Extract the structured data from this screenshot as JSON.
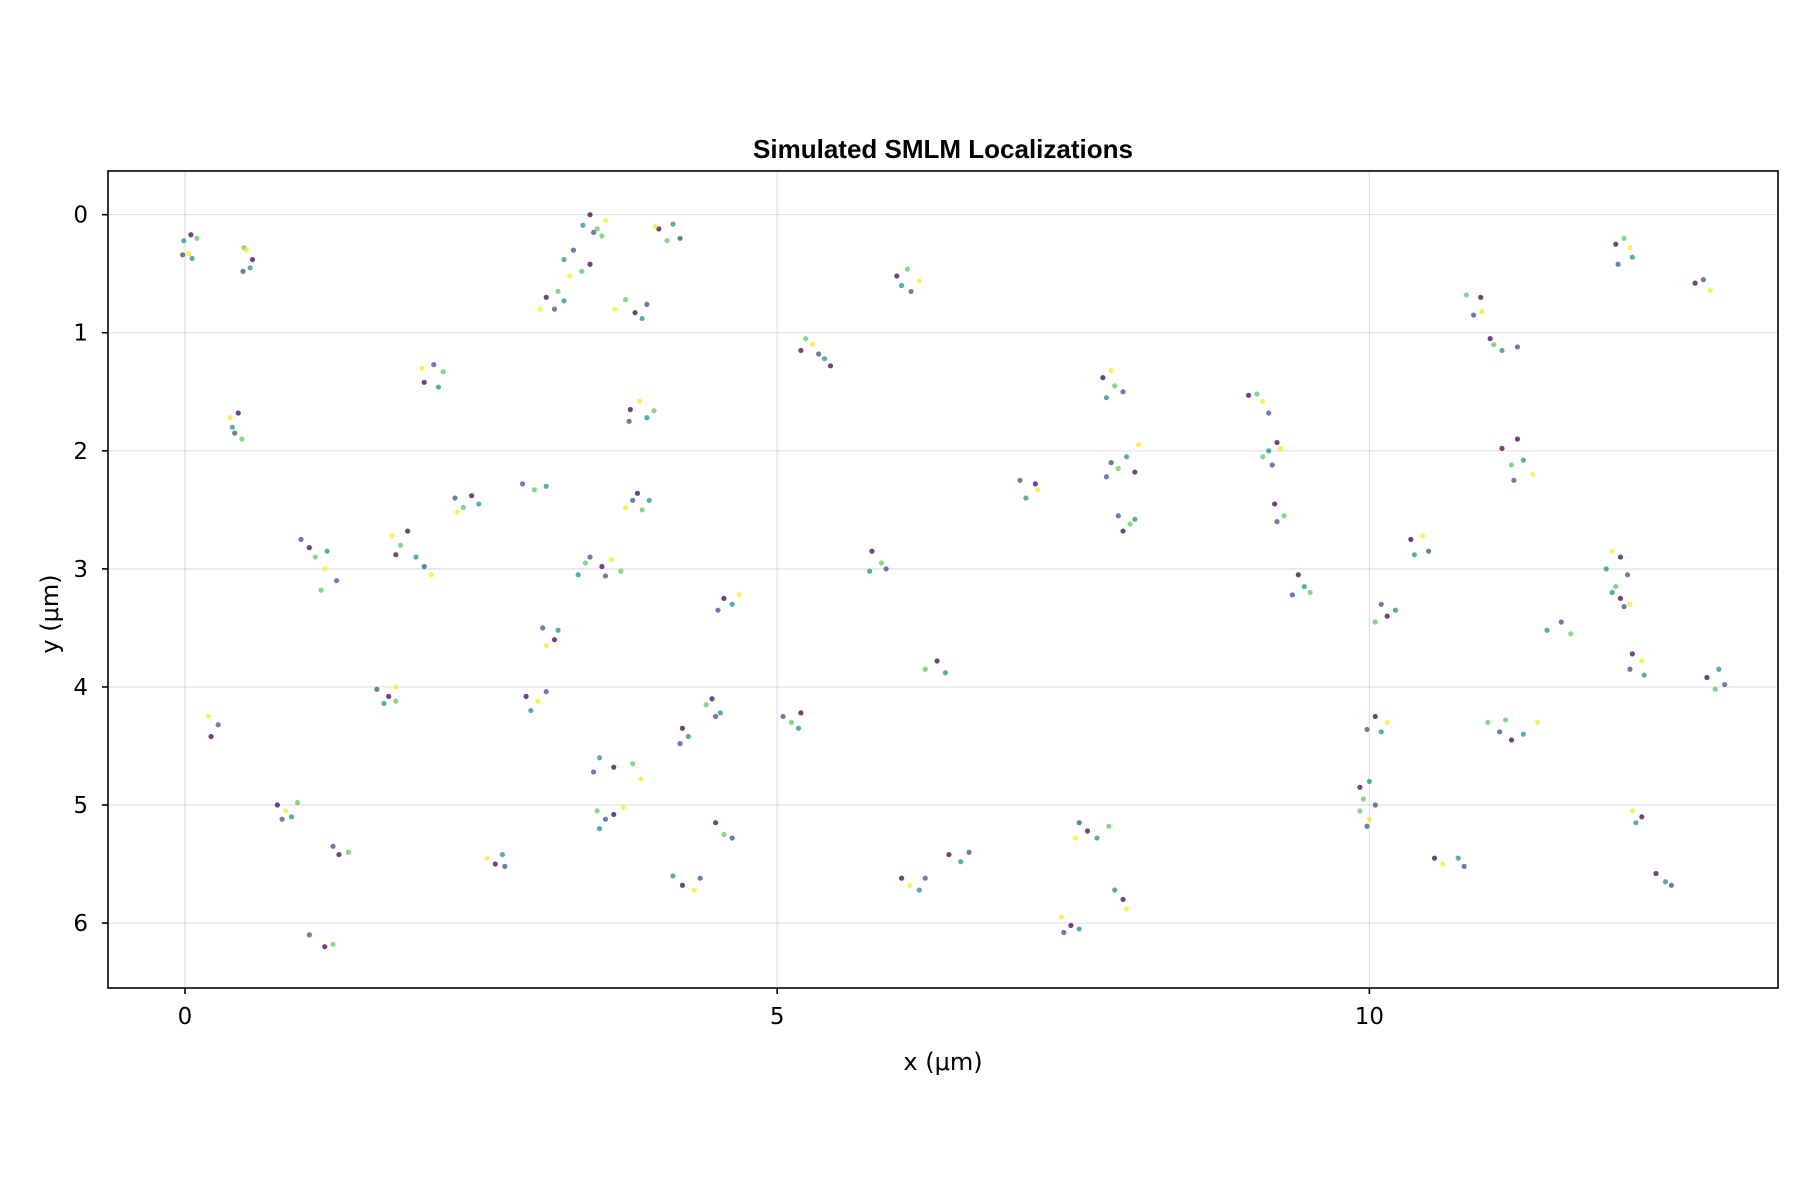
{
  "chart_data": {
    "type": "scatter",
    "title": "Simulated SMLM Localizations",
    "xlabel": "x (μm)",
    "ylabel": "y (μm)",
    "xlim": [
      -0.65,
      13.45
    ],
    "ylim": [
      -0.37,
      6.55
    ],
    "y_inverted": true,
    "grid": true,
    "legend": "none",
    "x_ticks": [
      {
        "value": 0,
        "label": "0"
      },
      {
        "value": 5,
        "label": "5"
      },
      {
        "value": 10,
        "label": "10"
      }
    ],
    "y_ticks": [
      {
        "value": 0,
        "label": "0"
      },
      {
        "value": 1,
        "label": "1"
      },
      {
        "value": 2,
        "label": "2"
      },
      {
        "value": 3,
        "label": "3"
      },
      {
        "value": 4,
        "label": "4"
      },
      {
        "value": 5,
        "label": "5"
      },
      {
        "value": 6,
        "label": "6"
      }
    ],
    "colormap": [
      "#440154",
      "#3b528b",
      "#21918c",
      "#5ec962",
      "#fde725"
    ],
    "marker_opacity": 0.75,
    "points": [
      [
        -0.01,
        0.22,
        2
      ],
      [
        0.05,
        0.17,
        0
      ],
      [
        0.03,
        0.33,
        4
      ],
      [
        -0.02,
        0.34,
        1
      ],
      [
        0.1,
        0.2,
        3
      ],
      [
        0.06,
        0.37,
        2
      ],
      [
        0.5,
        0.28,
        3
      ],
      [
        0.57,
        0.38,
        0
      ],
      [
        0.49,
        0.48,
        1
      ],
      [
        0.52,
        0.3,
        4
      ],
      [
        0.55,
        0.45,
        2
      ],
      [
        3.42,
        0.0,
        0
      ],
      [
        3.48,
        0.12,
        3
      ],
      [
        3.36,
        0.09,
        2
      ],
      [
        3.55,
        0.05,
        4
      ],
      [
        3.45,
        0.15,
        1
      ],
      [
        3.52,
        0.18,
        3
      ],
      [
        4.0,
        0.12,
        0
      ],
      [
        4.07,
        0.22,
        3
      ],
      [
        4.12,
        0.08,
        2
      ],
      [
        4.18,
        0.2,
        1
      ],
      [
        3.97,
        0.1,
        4
      ],
      [
        6.01,
        0.52,
        0
      ],
      [
        6.1,
        0.46,
        3
      ],
      [
        6.05,
        0.6,
        2
      ],
      [
        6.13,
        0.65,
        1
      ],
      [
        6.2,
        0.56,
        4
      ],
      [
        12.08,
        0.25,
        0
      ],
      [
        12.2,
        0.28,
        4
      ],
      [
        12.1,
        0.42,
        1
      ],
      [
        12.22,
        0.36,
        2
      ],
      [
        12.15,
        0.2,
        3
      ],
      [
        12.75,
        0.58,
        0
      ],
      [
        12.88,
        0.64,
        4
      ],
      [
        12.82,
        0.55,
        1
      ],
      [
        3.2,
        0.38,
        2
      ],
      [
        3.28,
        0.3,
        1
      ],
      [
        3.35,
        0.48,
        3
      ],
      [
        3.42,
        0.42,
        0
      ],
      [
        3.25,
        0.52,
        4
      ],
      [
        3.05,
        0.7,
        0
      ],
      [
        3.15,
        0.65,
        3
      ],
      [
        3.12,
        0.8,
        1
      ],
      [
        3.2,
        0.73,
        2
      ],
      [
        3.0,
        0.8,
        4
      ],
      [
        3.72,
        0.72,
        3
      ],
      [
        3.8,
        0.83,
        0
      ],
      [
        3.86,
        0.88,
        2
      ],
      [
        3.9,
        0.76,
        1
      ],
      [
        3.63,
        0.8,
        4
      ],
      [
        10.82,
        0.68,
        3
      ],
      [
        10.94,
        0.7,
        0
      ],
      [
        10.88,
        0.85,
        1
      ],
      [
        10.95,
        0.82,
        4
      ],
      [
        11.02,
        1.05,
        0
      ],
      [
        11.12,
        1.15,
        2
      ],
      [
        11.25,
        1.12,
        1
      ],
      [
        11.05,
        1.1,
        3
      ],
      [
        5.24,
        1.05,
        3
      ],
      [
        5.2,
        1.15,
        0
      ],
      [
        5.3,
        1.1,
        4
      ],
      [
        5.35,
        1.18,
        1
      ],
      [
        5.4,
        1.22,
        2
      ],
      [
        5.45,
        1.28,
        0
      ],
      [
        2.0,
        1.3,
        4
      ],
      [
        2.1,
        1.27,
        1
      ],
      [
        2.18,
        1.33,
        3
      ],
      [
        2.02,
        1.42,
        0
      ],
      [
        2.14,
        1.46,
        2
      ],
      [
        7.75,
        1.38,
        0
      ],
      [
        7.85,
        1.45,
        3
      ],
      [
        7.78,
        1.55,
        2
      ],
      [
        7.92,
        1.5,
        1
      ],
      [
        7.82,
        1.32,
        4
      ],
      [
        3.76,
        1.65,
        0
      ],
      [
        3.84,
        1.58,
        4
      ],
      [
        3.9,
        1.72,
        2
      ],
      [
        3.75,
        1.75,
        1
      ],
      [
        3.96,
        1.66,
        3
      ],
      [
        0.38,
        1.72,
        4
      ],
      [
        0.45,
        1.68,
        0
      ],
      [
        0.42,
        1.85,
        1
      ],
      [
        0.48,
        1.9,
        3
      ],
      [
        0.4,
        1.8,
        2
      ],
      [
        8.98,
        1.53,
        0
      ],
      [
        9.1,
        1.58,
        4
      ],
      [
        9.15,
        1.68,
        1
      ],
      [
        9.05,
        1.52,
        3
      ],
      [
        9.15,
        2.0,
        2
      ],
      [
        9.22,
        1.93,
        0
      ],
      [
        9.18,
        2.12,
        1
      ],
      [
        9.1,
        2.05,
        3
      ],
      [
        9.25,
        1.98,
        4
      ],
      [
        7.82,
        2.1,
        1
      ],
      [
        7.95,
        2.05,
        2
      ],
      [
        8.02,
        2.18,
        0
      ],
      [
        7.88,
        2.15,
        3
      ],
      [
        8.05,
        1.95,
        4
      ],
      [
        7.78,
        2.22,
        1
      ],
      [
        11.12,
        1.98,
        0
      ],
      [
        11.2,
        2.12,
        3
      ],
      [
        11.3,
        2.08,
        2
      ],
      [
        11.22,
        2.25,
        1
      ],
      [
        11.38,
        2.2,
        4
      ],
      [
        11.25,
        1.9,
        0
      ],
      [
        7.05,
        2.25,
        1
      ],
      [
        7.2,
        2.33,
        4
      ],
      [
        7.1,
        2.4,
        2
      ],
      [
        7.18,
        2.28,
        0
      ],
      [
        3.78,
        2.42,
        1
      ],
      [
        3.86,
        2.5,
        3
      ],
      [
        3.82,
        2.36,
        0
      ],
      [
        3.92,
        2.42,
        2
      ],
      [
        3.72,
        2.48,
        4
      ],
      [
        2.28,
        2.4,
        1
      ],
      [
        2.35,
        2.48,
        3
      ],
      [
        2.42,
        2.38,
        0
      ],
      [
        2.3,
        2.52,
        4
      ],
      [
        2.48,
        2.45,
        2
      ],
      [
        2.85,
        2.28,
        1
      ],
      [
        2.95,
        2.33,
        3
      ],
      [
        3.05,
        2.3,
        2
      ],
      [
        7.88,
        2.55,
        1
      ],
      [
        7.98,
        2.62,
        3
      ],
      [
        7.92,
        2.68,
        0
      ],
      [
        8.02,
        2.58,
        2
      ],
      [
        9.2,
        2.45,
        0
      ],
      [
        9.28,
        2.55,
        3
      ],
      [
        9.22,
        2.6,
        1
      ],
      [
        1.75,
        2.72,
        4
      ],
      [
        1.82,
        2.8,
        3
      ],
      [
        1.88,
        2.68,
        0
      ],
      [
        1.95,
        2.9,
        2
      ],
      [
        2.02,
        2.98,
        1
      ],
      [
        2.08,
        3.05,
        4
      ],
      [
        1.78,
        2.88,
        0
      ],
      [
        0.98,
        2.75,
        1
      ],
      [
        1.05,
        2.82,
        0
      ],
      [
        1.1,
        2.9,
        3
      ],
      [
        1.2,
        2.85,
        2
      ],
      [
        1.18,
        3.0,
        4
      ],
      [
        1.28,
        3.1,
        1
      ],
      [
        1.15,
        3.18,
        3
      ],
      [
        3.42,
        2.9,
        1
      ],
      [
        3.52,
        2.98,
        0
      ],
      [
        3.32,
        3.05,
        2
      ],
      [
        3.6,
        2.92,
        4
      ],
      [
        3.68,
        3.02,
        3
      ],
      [
        3.55,
        3.06,
        1
      ],
      [
        3.38,
        2.95,
        3
      ],
      [
        5.8,
        2.85,
        0
      ],
      [
        5.88,
        2.95,
        3
      ],
      [
        5.78,
        3.02,
        2
      ],
      [
        5.92,
        3.0,
        1
      ],
      [
        10.35,
        2.75,
        0
      ],
      [
        10.45,
        2.72,
        4
      ],
      [
        10.38,
        2.88,
        2
      ],
      [
        10.5,
        2.85,
        1
      ],
      [
        12.05,
        2.85,
        4
      ],
      [
        12.12,
        2.9,
        0
      ],
      [
        12.0,
        3.0,
        2
      ],
      [
        12.18,
        3.05,
        1
      ],
      [
        12.08,
        3.15,
        3
      ],
      [
        9.4,
        3.05,
        0
      ],
      [
        9.45,
        3.15,
        2
      ],
      [
        9.35,
        3.22,
        1
      ],
      [
        9.5,
        3.2,
        3
      ],
      [
        4.55,
        3.25,
        0
      ],
      [
        4.62,
        3.3,
        2
      ],
      [
        4.5,
        3.35,
        1
      ],
      [
        4.68,
        3.22,
        4
      ],
      [
        10.1,
        3.3,
        1
      ],
      [
        10.15,
        3.4,
        0
      ],
      [
        10.05,
        3.45,
        3
      ],
      [
        10.22,
        3.35,
        2
      ],
      [
        12.12,
        3.25,
        0
      ],
      [
        12.2,
        3.3,
        4
      ],
      [
        12.15,
        3.32,
        1
      ],
      [
        12.05,
        3.2,
        2
      ],
      [
        11.5,
        3.52,
        2
      ],
      [
        11.62,
        3.45,
        1
      ],
      [
        11.7,
        3.55,
        3
      ],
      [
        3.02,
        3.5,
        1
      ],
      [
        3.12,
        3.6,
        0
      ],
      [
        3.15,
        3.52,
        2
      ],
      [
        3.05,
        3.65,
        4
      ],
      [
        12.22,
        3.72,
        0
      ],
      [
        12.3,
        3.78,
        4
      ],
      [
        12.2,
        3.85,
        1
      ],
      [
        12.32,
        3.9,
        2
      ],
      [
        6.25,
        3.85,
        3
      ],
      [
        6.35,
        3.78,
        0
      ],
      [
        6.42,
        3.88,
        2
      ],
      [
        12.85,
        3.92,
        0
      ],
      [
        12.95,
        3.85,
        2
      ],
      [
        13.0,
        3.98,
        1
      ],
      [
        12.92,
        4.02,
        3
      ],
      [
        1.62,
        4.02,
        1
      ],
      [
        1.72,
        4.08,
        0
      ],
      [
        1.78,
        4.0,
        4
      ],
      [
        1.68,
        4.14,
        2
      ],
      [
        1.78,
        4.12,
        3
      ],
      [
        2.88,
        4.08,
        0
      ],
      [
        2.98,
        4.12,
        4
      ],
      [
        2.92,
        4.2,
        2
      ],
      [
        3.05,
        4.04,
        1
      ],
      [
        4.45,
        4.1,
        0
      ],
      [
        4.52,
        4.22,
        2
      ],
      [
        4.4,
        4.15,
        3
      ],
      [
        4.48,
        4.25,
        1
      ],
      [
        0.2,
        4.25,
        4
      ],
      [
        0.28,
        4.32,
        1
      ],
      [
        0.22,
        4.42,
        0
      ],
      [
        5.05,
        4.25,
        1
      ],
      [
        5.12,
        4.3,
        3
      ],
      [
        5.2,
        4.22,
        0
      ],
      [
        5.18,
        4.35,
        2
      ],
      [
        10.05,
        4.25,
        0
      ],
      [
        10.15,
        4.3,
        4
      ],
      [
        10.1,
        4.38,
        2
      ],
      [
        9.98,
        4.36,
        1
      ],
      [
        11.0,
        4.3,
        3
      ],
      [
        11.1,
        4.38,
        1
      ],
      [
        11.2,
        4.45,
        0
      ],
      [
        11.3,
        4.4,
        2
      ],
      [
        11.42,
        4.3,
        4
      ],
      [
        11.15,
        4.28,
        3
      ],
      [
        4.2,
        4.35,
        0
      ],
      [
        4.25,
        4.42,
        2
      ],
      [
        4.18,
        4.48,
        1
      ],
      [
        3.5,
        4.6,
        2
      ],
      [
        3.62,
        4.68,
        0
      ],
      [
        3.45,
        4.72,
        1
      ],
      [
        3.78,
        4.65,
        3
      ],
      [
        3.85,
        4.78,
        4
      ],
      [
        9.92,
        4.85,
        0
      ],
      [
        10.0,
        4.8,
        2
      ],
      [
        9.95,
        4.95,
        3
      ],
      [
        10.05,
        5.0,
        1
      ],
      [
        0.78,
        5.0,
        0
      ],
      [
        0.85,
        5.05,
        4
      ],
      [
        0.9,
        5.1,
        2
      ],
      [
        0.82,
        5.12,
        1
      ],
      [
        0.95,
        4.98,
        3
      ],
      [
        3.48,
        5.05,
        3
      ],
      [
        3.55,
        5.12,
        1
      ],
      [
        3.62,
        5.08,
        0
      ],
      [
        3.7,
        5.02,
        4
      ],
      [
        3.5,
        5.2,
        2
      ],
      [
        9.92,
        5.05,
        3
      ],
      [
        10.0,
        5.12,
        4
      ],
      [
        9.98,
        5.18,
        1
      ],
      [
        12.22,
        5.05,
        4
      ],
      [
        12.3,
        5.1,
        0
      ],
      [
        12.25,
        5.15,
        2
      ],
      [
        4.48,
        5.15,
        0
      ],
      [
        4.55,
        5.25,
        3
      ],
      [
        4.62,
        5.28,
        1
      ],
      [
        7.55,
        5.15,
        1
      ],
      [
        7.62,
        5.22,
        0
      ],
      [
        7.7,
        5.28,
        2
      ],
      [
        7.8,
        5.18,
        3
      ],
      [
        7.52,
        5.28,
        4
      ],
      [
        1.25,
        5.35,
        1
      ],
      [
        1.3,
        5.42,
        0
      ],
      [
        1.38,
        5.4,
        3
      ],
      [
        2.55,
        5.45,
        4
      ],
      [
        2.62,
        5.5,
        0
      ],
      [
        2.68,
        5.42,
        2
      ],
      [
        2.7,
        5.52,
        1
      ],
      [
        6.45,
        5.42,
        0
      ],
      [
        6.55,
        5.48,
        2
      ],
      [
        6.62,
        5.4,
        1
      ],
      [
        10.55,
        5.45,
        0
      ],
      [
        10.62,
        5.5,
        4
      ],
      [
        10.75,
        5.45,
        2
      ],
      [
        10.8,
        5.52,
        1
      ],
      [
        4.12,
        5.6,
        2
      ],
      [
        4.2,
        5.68,
        0
      ],
      [
        4.3,
        5.72,
        4
      ],
      [
        4.35,
        5.62,
        1
      ],
      [
        6.05,
        5.62,
        0
      ],
      [
        6.12,
        5.68,
        4
      ],
      [
        6.2,
        5.72,
        2
      ],
      [
        6.25,
        5.62,
        1
      ],
      [
        12.42,
        5.58,
        0
      ],
      [
        12.5,
        5.65,
        2
      ],
      [
        12.55,
        5.68,
        1
      ],
      [
        7.85,
        5.72,
        2
      ],
      [
        7.92,
        5.8,
        0
      ],
      [
        7.95,
        5.88,
        4
      ],
      [
        7.4,
        5.95,
        4
      ],
      [
        7.48,
        6.02,
        0
      ],
      [
        7.55,
        6.05,
        2
      ],
      [
        7.42,
        6.08,
        1
      ],
      [
        1.05,
        6.1,
        1
      ],
      [
        1.18,
        6.2,
        0
      ],
      [
        1.25,
        6.18,
        3
      ]
    ]
  }
}
